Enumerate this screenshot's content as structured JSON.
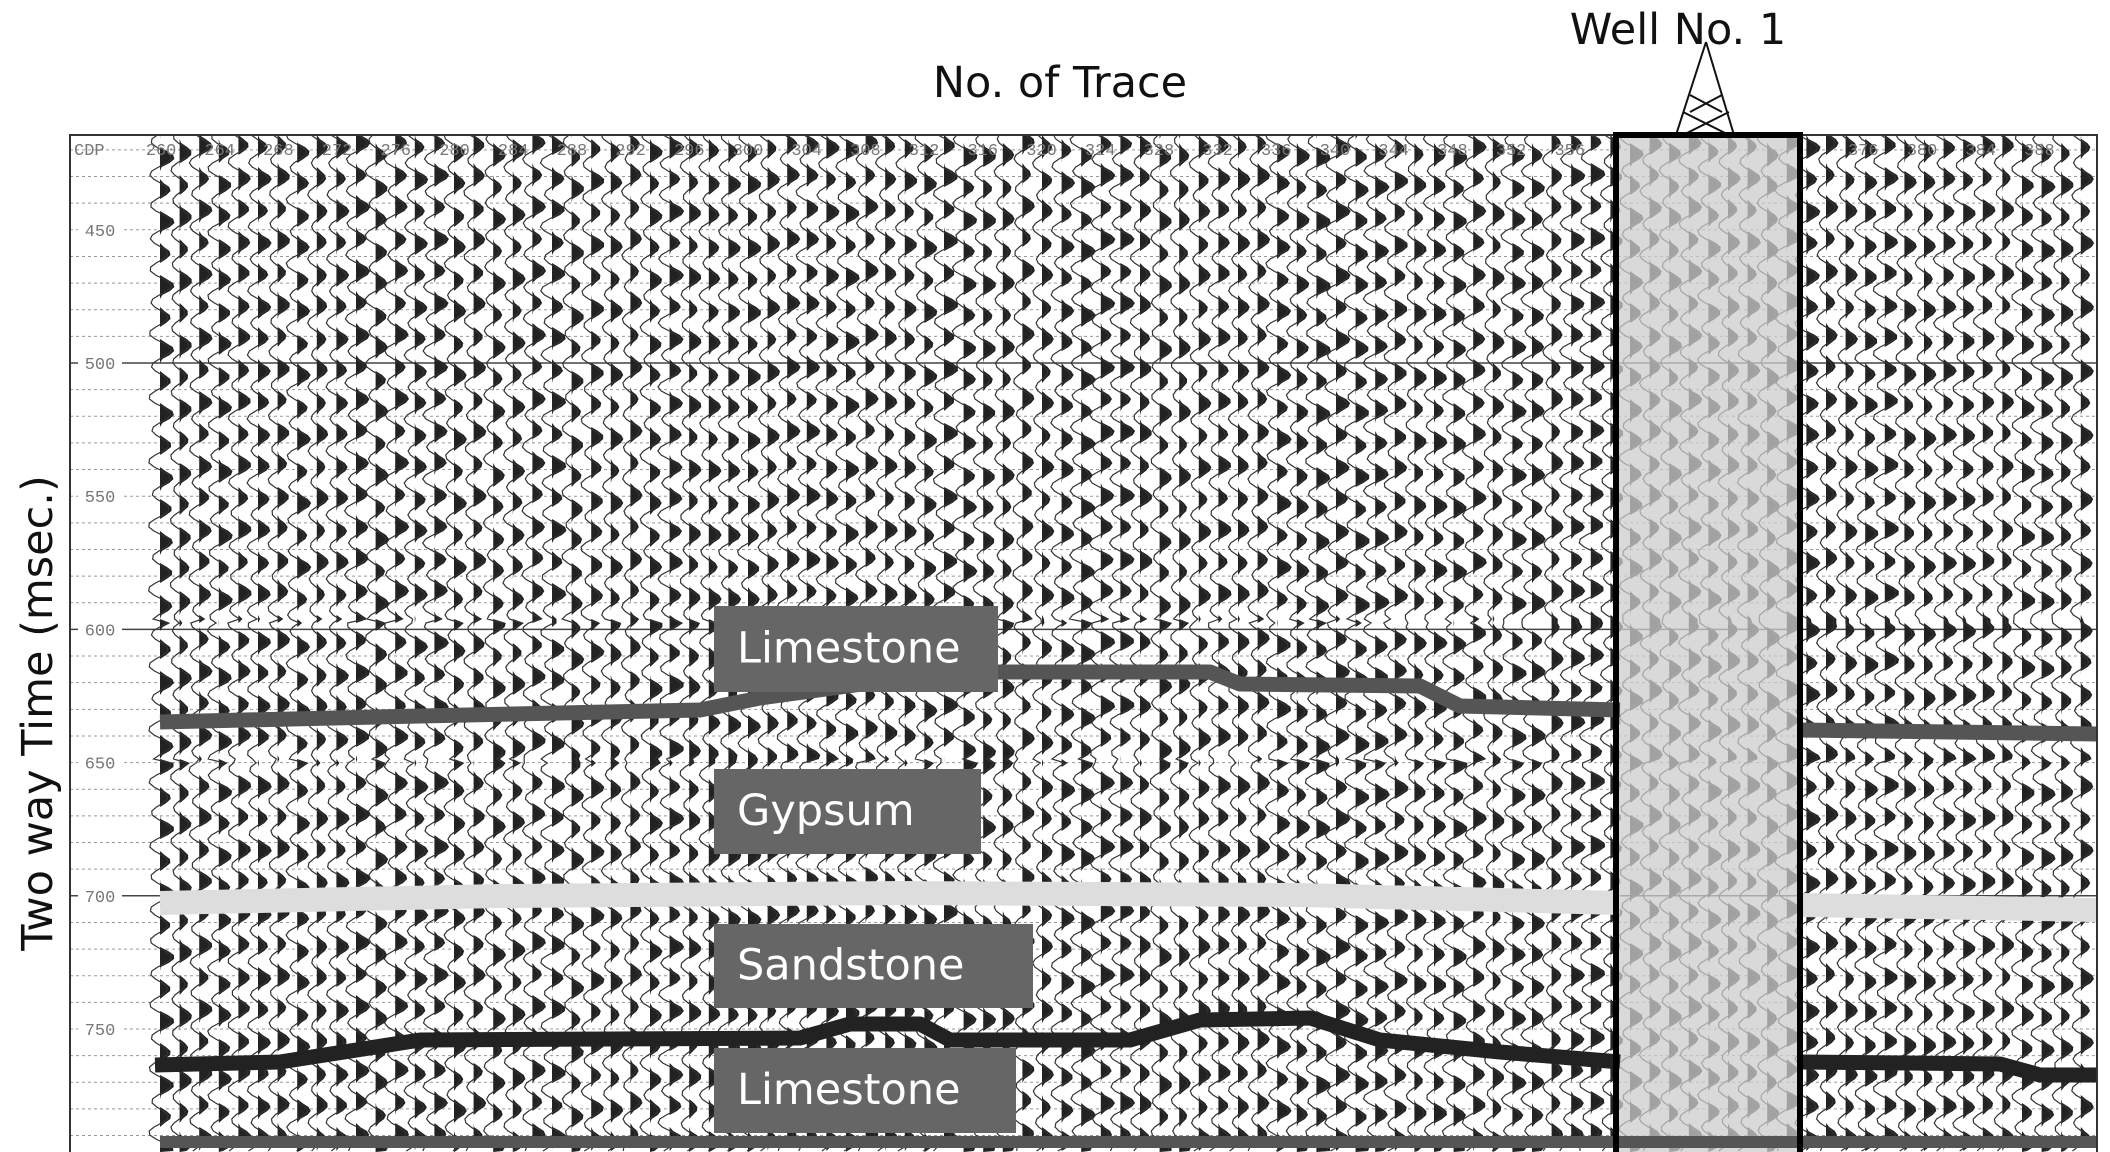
{
  "header": {
    "title": "No. of Trace",
    "well_label": "Well No. 1",
    "y_axis_label": "Two way Time (msec.)"
  },
  "section": {
    "cdp_label": "CDP",
    "cdp_ticks": [
      260,
      264,
      268,
      272,
      276,
      280,
      284,
      288,
      292,
      296,
      300,
      304,
      308,
      312,
      316,
      320,
      324,
      328,
      332,
      336,
      340,
      344,
      348,
      352,
      356,
      376,
      380,
      384,
      388
    ],
    "time_ticks": [
      450,
      500,
      550,
      600,
      650,
      700,
      750
    ]
  },
  "layers": [
    "Limestone",
    "Gypsum",
    "Sandstone",
    "Limestone"
  ]
}
